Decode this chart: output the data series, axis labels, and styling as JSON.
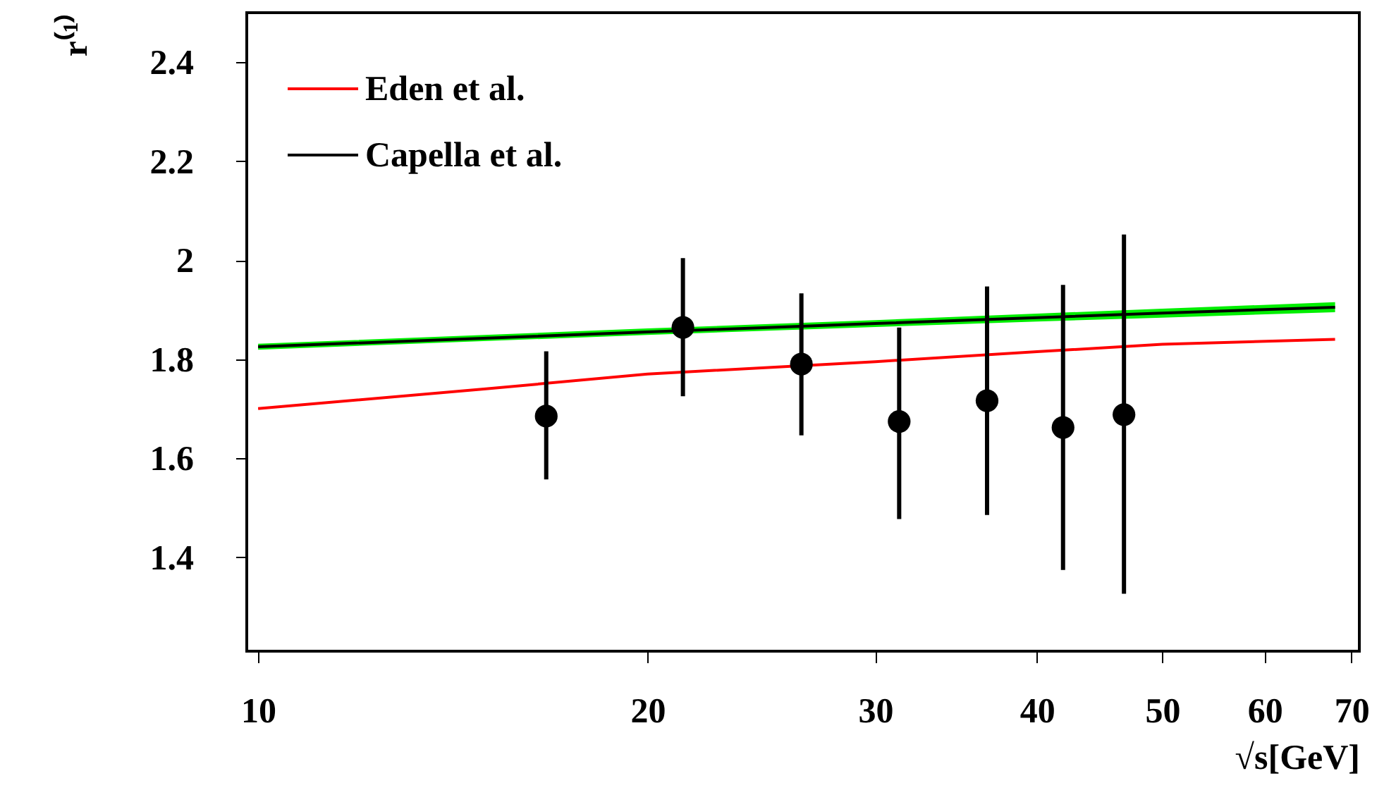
{
  "chart_data": {
    "type": "line",
    "xlabel": "√s[GeV]",
    "ylabel": "r⁽¹⁾",
    "log": "x",
    "xlim": [
      9.8,
      71
    ],
    "xticks": [
      10,
      20,
      30,
      40,
      50,
      60,
      70
    ],
    "ylim": [
      1.21,
      2.5
    ],
    "yticks": [
      1.4,
      1.6,
      1.8,
      2,
      2.2,
      2.4
    ],
    "grid": false,
    "legend": "top left",
    "line_style": "solid",
    "series": [
      {
        "name": "Eden et al.",
        "marker": "none",
        "color": "#ff0000",
        "x": [
          10,
          15,
          20,
          30,
          40,
          50,
          68
        ],
        "values": [
          1.7,
          1.74,
          1.77,
          1.795,
          1.815,
          1.83,
          1.84
        ]
      },
      {
        "name": "Capella et al.",
        "marker": "none",
        "color": "#000000",
        "x": [
          10,
          20,
          30,
          40,
          50,
          68
        ],
        "values": [
          1.825,
          1.855,
          1.872,
          1.884,
          1.893,
          1.905
        ],
        "lower": [
          1.819,
          1.849,
          1.865,
          1.876,
          1.884,
          1.895
        ],
        "upper": [
          1.831,
          1.862,
          1.879,
          1.892,
          1.902,
          1.915
        ]
      },
      {
        "type": "scatter",
        "marker": "circle",
        "color": "#000000",
        "x": [
          16.7,
          21.3,
          26.3,
          31.3,
          36.6,
          41.9,
          46.7
        ],
        "values": [
          1.685,
          1.864,
          1.79,
          1.674,
          1.716,
          1.662,
          1.688
        ],
        "errors": [
          [
            1.557,
            1.816
          ],
          [
            1.725,
            2.004
          ],
          [
            1.646,
            1.933
          ],
          [
            1.477,
            1.864
          ],
          [
            1.485,
            1.947
          ],
          [
            1.374,
            1.95
          ],
          [
            1.326,
            2.052
          ]
        ]
      }
    ]
  }
}
